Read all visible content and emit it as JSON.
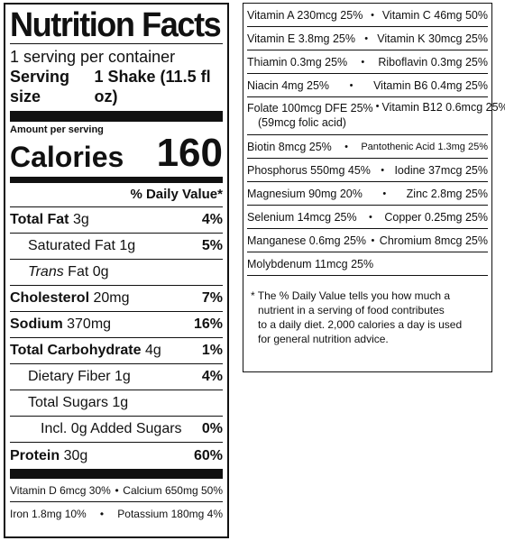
{
  "title": "Nutrition Facts",
  "servings_per_container": "1 serving per container",
  "serving_size_label": "Serving size",
  "serving_size_value": "1 Shake (11.5 fl oz)",
  "amount_per_serving": "Amount per serving",
  "calories_label": "Calories",
  "calories_value": "160",
  "dv_header": "% Daily Value*",
  "nutrients": [
    {
      "name": "Total Fat",
      "amount": "3g",
      "dv": "4%"
    },
    {
      "name": "Saturated Fat",
      "amount": "1g",
      "dv": "5%"
    },
    {
      "name": "Trans",
      "name_suffix": " Fat",
      "amount": "0g",
      "dv": ""
    },
    {
      "name": "Cholesterol",
      "amount": "20mg",
      "dv": "7%"
    },
    {
      "name": "Sodium",
      "amount": "370mg",
      "dv": "16%"
    },
    {
      "name": "Total Carbohydrate",
      "amount": "4g",
      "dv": "1%"
    },
    {
      "name": "Dietary Fiber",
      "amount": "1g",
      "dv": "4%"
    },
    {
      "name": "Total Sugars",
      "amount": "1g",
      "dv": ""
    },
    {
      "name": "Incl. 0g Added Sugars",
      "amount": "",
      "dv": "0%"
    },
    {
      "name": "Protein",
      "amount": "30g",
      "dv": "60%"
    }
  ],
  "vitamins_left": [
    {
      "a": "Vitamin D 6mcg 30%",
      "b": "Calcium 650mg 50%"
    },
    {
      "a": "Iron 1.8mg 10%",
      "b": "Potassium 180mg 4%"
    }
  ],
  "vitamins_right": [
    {
      "a": "Vitamin A 230mcg 25%",
      "b": "Vitamin C 46mg 50%"
    },
    {
      "a": "Vitamin E 3.8mg 25%",
      "b": "Vitamin K 30mcg 25%"
    },
    {
      "a": "Thiamin 0.3mg 25%",
      "b": "Riboflavin 0.3mg 25%"
    },
    {
      "a": "Niacin 4mg 25%",
      "b": "Vitamin B6 0.4mg 25%"
    },
    {
      "a": "Folate 100mcg DFE 25%",
      "a2": "(59mcg folic acid)",
      "b": "Vitamin B12 0.6mcg 25%"
    },
    {
      "a": "Biotin 8mcg 25%",
      "b": "Pantothenic Acid 1.3mg 25%"
    },
    {
      "a": "Phosphorus 550mg 45%",
      "b": "Iodine 37mcg 25%"
    },
    {
      "a": "Magnesium 90mg 20%",
      "b": "Zinc 2.8mg 25%"
    },
    {
      "a": "Selenium 14mcg 25%",
      "b": "Copper 0.25mg 25%"
    },
    {
      "a": "Manganese 0.6mg 25%",
      "b": "Chromium 8mcg 25%"
    },
    {
      "a": "Molybdenum 11mcg 25%",
      "b": ""
    }
  ],
  "bullet": "•",
  "footnote": [
    "* The % Daily Value tells you how much a",
    "nutrient in a serving of food contributes",
    "to a daily diet. 2,000 calories a day is used",
    "for general nutrition advice."
  ]
}
